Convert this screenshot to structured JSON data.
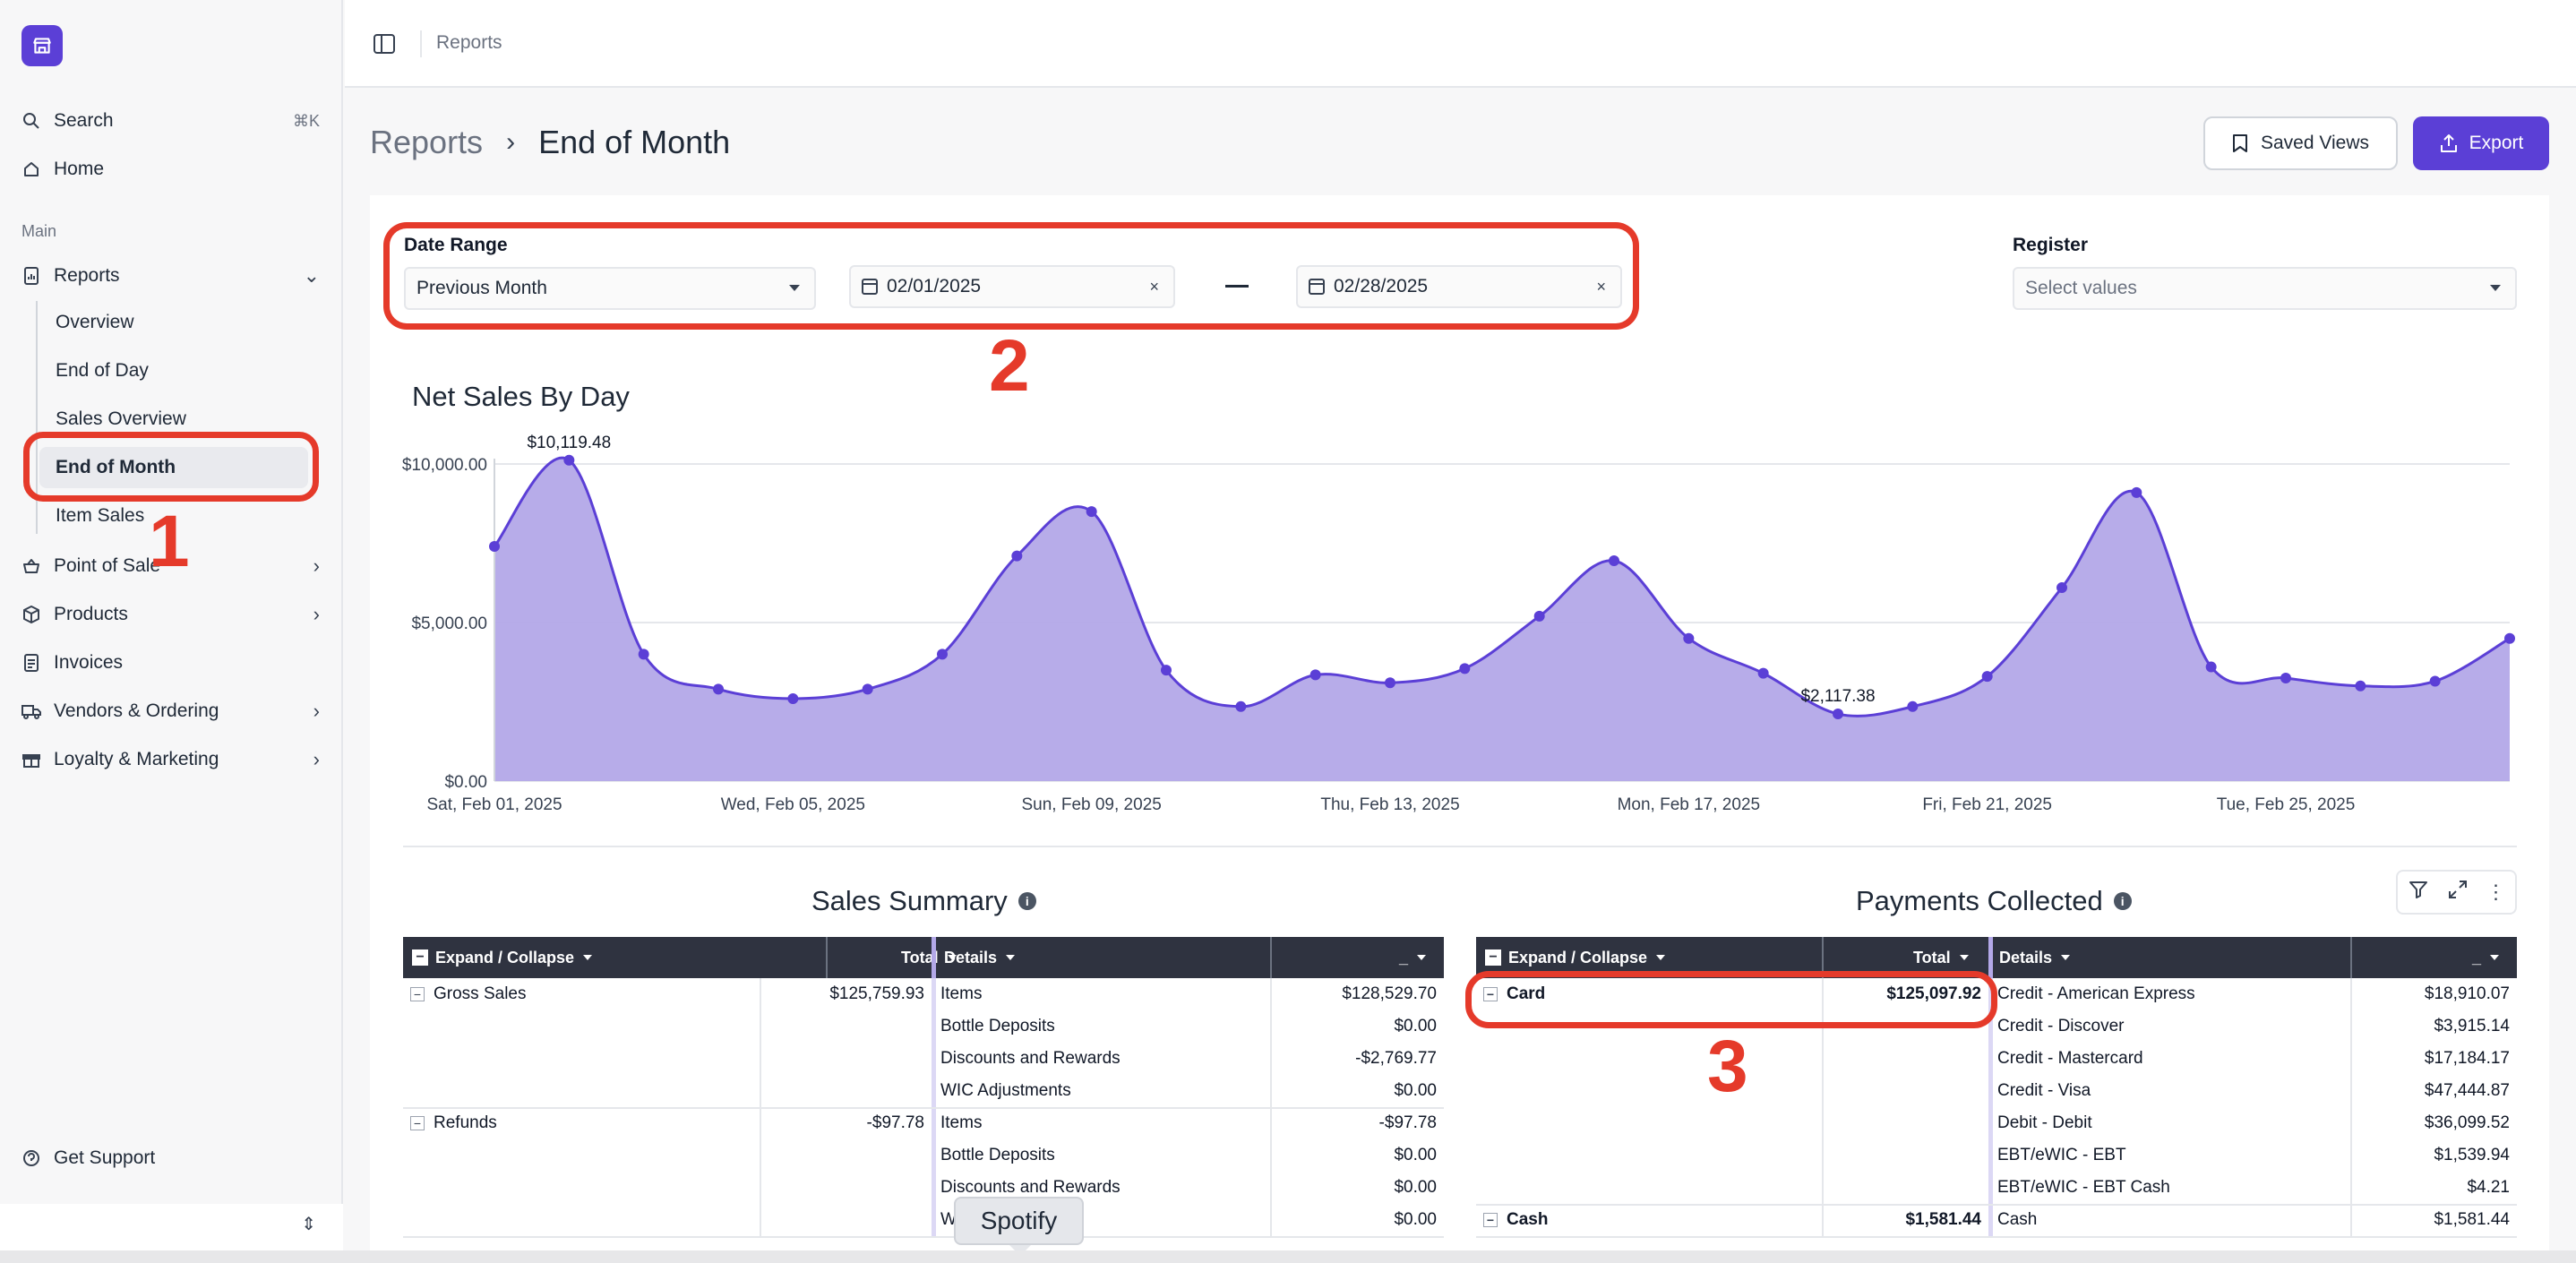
{
  "sidebar": {
    "search_label": "Search",
    "search_shortcut": "⌘K",
    "home_label": "Home",
    "section_main": "Main",
    "reports_label": "Reports",
    "reports_sub": [
      "Overview",
      "End of Day",
      "Sales Overview",
      "End of Month",
      "Item Sales"
    ],
    "pos_label": "Point of Sale",
    "products_label": "Products",
    "invoices_label": "Invoices",
    "vendors_label": "Vendors & Ordering",
    "loyalty_label": "Loyalty & Marketing",
    "support_label": "Get Support"
  },
  "topbar": {
    "breadcrumb": "Reports"
  },
  "header": {
    "crumb_parent": "Reports",
    "crumb_current": "End of Month",
    "saved_views_label": "Saved Views",
    "export_label": "Export"
  },
  "filters": {
    "date_range_label": "Date Range",
    "date_range_value": "Previous Month",
    "start_date": "02/01/2025",
    "end_date": "02/28/2025",
    "range_separator": "—",
    "register_label": "Register",
    "register_placeholder": "Select values"
  },
  "chart_data": {
    "type": "area",
    "title": "Net Sales By Day",
    "x": [
      "Sat, Feb 01, 2025",
      "Sun, Feb 02, 2025",
      "Mon, Feb 03, 2025",
      "Tue, Feb 04, 2025",
      "Wed, Feb 05, 2025",
      "Thu, Feb 06, 2025",
      "Fri, Feb 07, 2025",
      "Sat, Feb 08, 2025",
      "Sun, Feb 09, 2025",
      "Mon, Feb 10, 2025",
      "Tue, Feb 11, 2025",
      "Wed, Feb 12, 2025",
      "Thu, Feb 13, 2025",
      "Fri, Feb 14, 2025",
      "Sat, Feb 15, 2025",
      "Sun, Feb 16, 2025",
      "Mon, Feb 17, 2025",
      "Tue, Feb 18, 2025",
      "Wed, Feb 19, 2025",
      "Thu, Feb 20, 2025",
      "Fri, Feb 21, 2025",
      "Sat, Feb 22, 2025",
      "Sun, Feb 23, 2025",
      "Mon, Feb 24, 2025",
      "Tue, Feb 25, 2025",
      "Wed, Feb 26, 2025",
      "Thu, Feb 27, 2025",
      "Fri, Feb 28, 2025"
    ],
    "values": [
      7400,
      10119.48,
      4000,
      2900,
      2600,
      2900,
      4000,
      7100,
      8500,
      3500,
      2350,
      3350,
      3100,
      3550,
      5200,
      6950,
      4500,
      3400,
      2117.38,
      2350,
      3300,
      6100,
      9100,
      3600,
      3250,
      3000,
      3150,
      4500
    ],
    "x_ticks": [
      "Sat, Feb 01, 2025",
      "Wed, Feb 05, 2025",
      "Sun, Feb 09, 2025",
      "Thu, Feb 13, 2025",
      "Mon, Feb 17, 2025",
      "Fri, Feb 21, 2025",
      "Tue, Feb 25, 2025"
    ],
    "y_ticks": [
      "$0.00",
      "$5,000.00",
      "$10,000.00"
    ],
    "ylim": [
      0,
      10000
    ],
    "annotations": [
      {
        "index": 1,
        "label": "$10,119.48"
      },
      {
        "index": 18,
        "label": "$2,117.38"
      }
    ],
    "color": "#5b3fd6",
    "fill": "#b3a8e8",
    "grid": true
  },
  "sales_summary": {
    "title": "Sales Summary",
    "headers": {
      "expand": "Expand / Collapse",
      "total": "Total",
      "details": "Details",
      "value": "_"
    },
    "groups": [
      {
        "name": "Gross Sales",
        "total": "$125,759.93",
        "details": [
          [
            "Items",
            "$128,529.70"
          ],
          [
            "Bottle Deposits",
            "$0.00"
          ],
          [
            "Discounts and Rewards",
            "-$2,769.77"
          ],
          [
            "WIC Adjustments",
            "$0.00"
          ]
        ]
      },
      {
        "name": "Refunds",
        "total": "-$97.78",
        "details": [
          [
            "Items",
            "-$97.78"
          ],
          [
            "Bottle Deposits",
            "$0.00"
          ],
          [
            "Discounts and Rewards",
            "$0.00"
          ],
          [
            "W",
            "$0.00"
          ]
        ]
      }
    ]
  },
  "payments_collected": {
    "title": "Payments Collected",
    "headers": {
      "expand": "Expand / Collapse",
      "total": "Total",
      "details": "Details",
      "value": "_"
    },
    "groups": [
      {
        "name": "Card",
        "total": "$125,097.92",
        "details": [
          [
            "Credit - American Express",
            "$18,910.07"
          ],
          [
            "Credit - Discover",
            "$3,915.14"
          ],
          [
            "Credit - Mastercard",
            "$17,184.17"
          ],
          [
            "Credit - Visa",
            "$47,444.87"
          ],
          [
            "Debit - Debit",
            "$36,099.52"
          ],
          [
            "EBT/eWIC - EBT",
            "$1,539.94"
          ],
          [
            "EBT/eWIC - EBT Cash",
            "$4.21"
          ]
        ]
      },
      {
        "name": "Cash",
        "total": "$1,581.44",
        "details": [
          [
            "Cash",
            "$1,581.44"
          ]
        ]
      }
    ]
  },
  "annotation_numbers": [
    "1",
    "2",
    "3"
  ],
  "tooltip": "Spotify",
  "colors": {
    "accent": "#5b3fd6",
    "callout": "#e53a2a",
    "table_header": "#2f3340"
  }
}
